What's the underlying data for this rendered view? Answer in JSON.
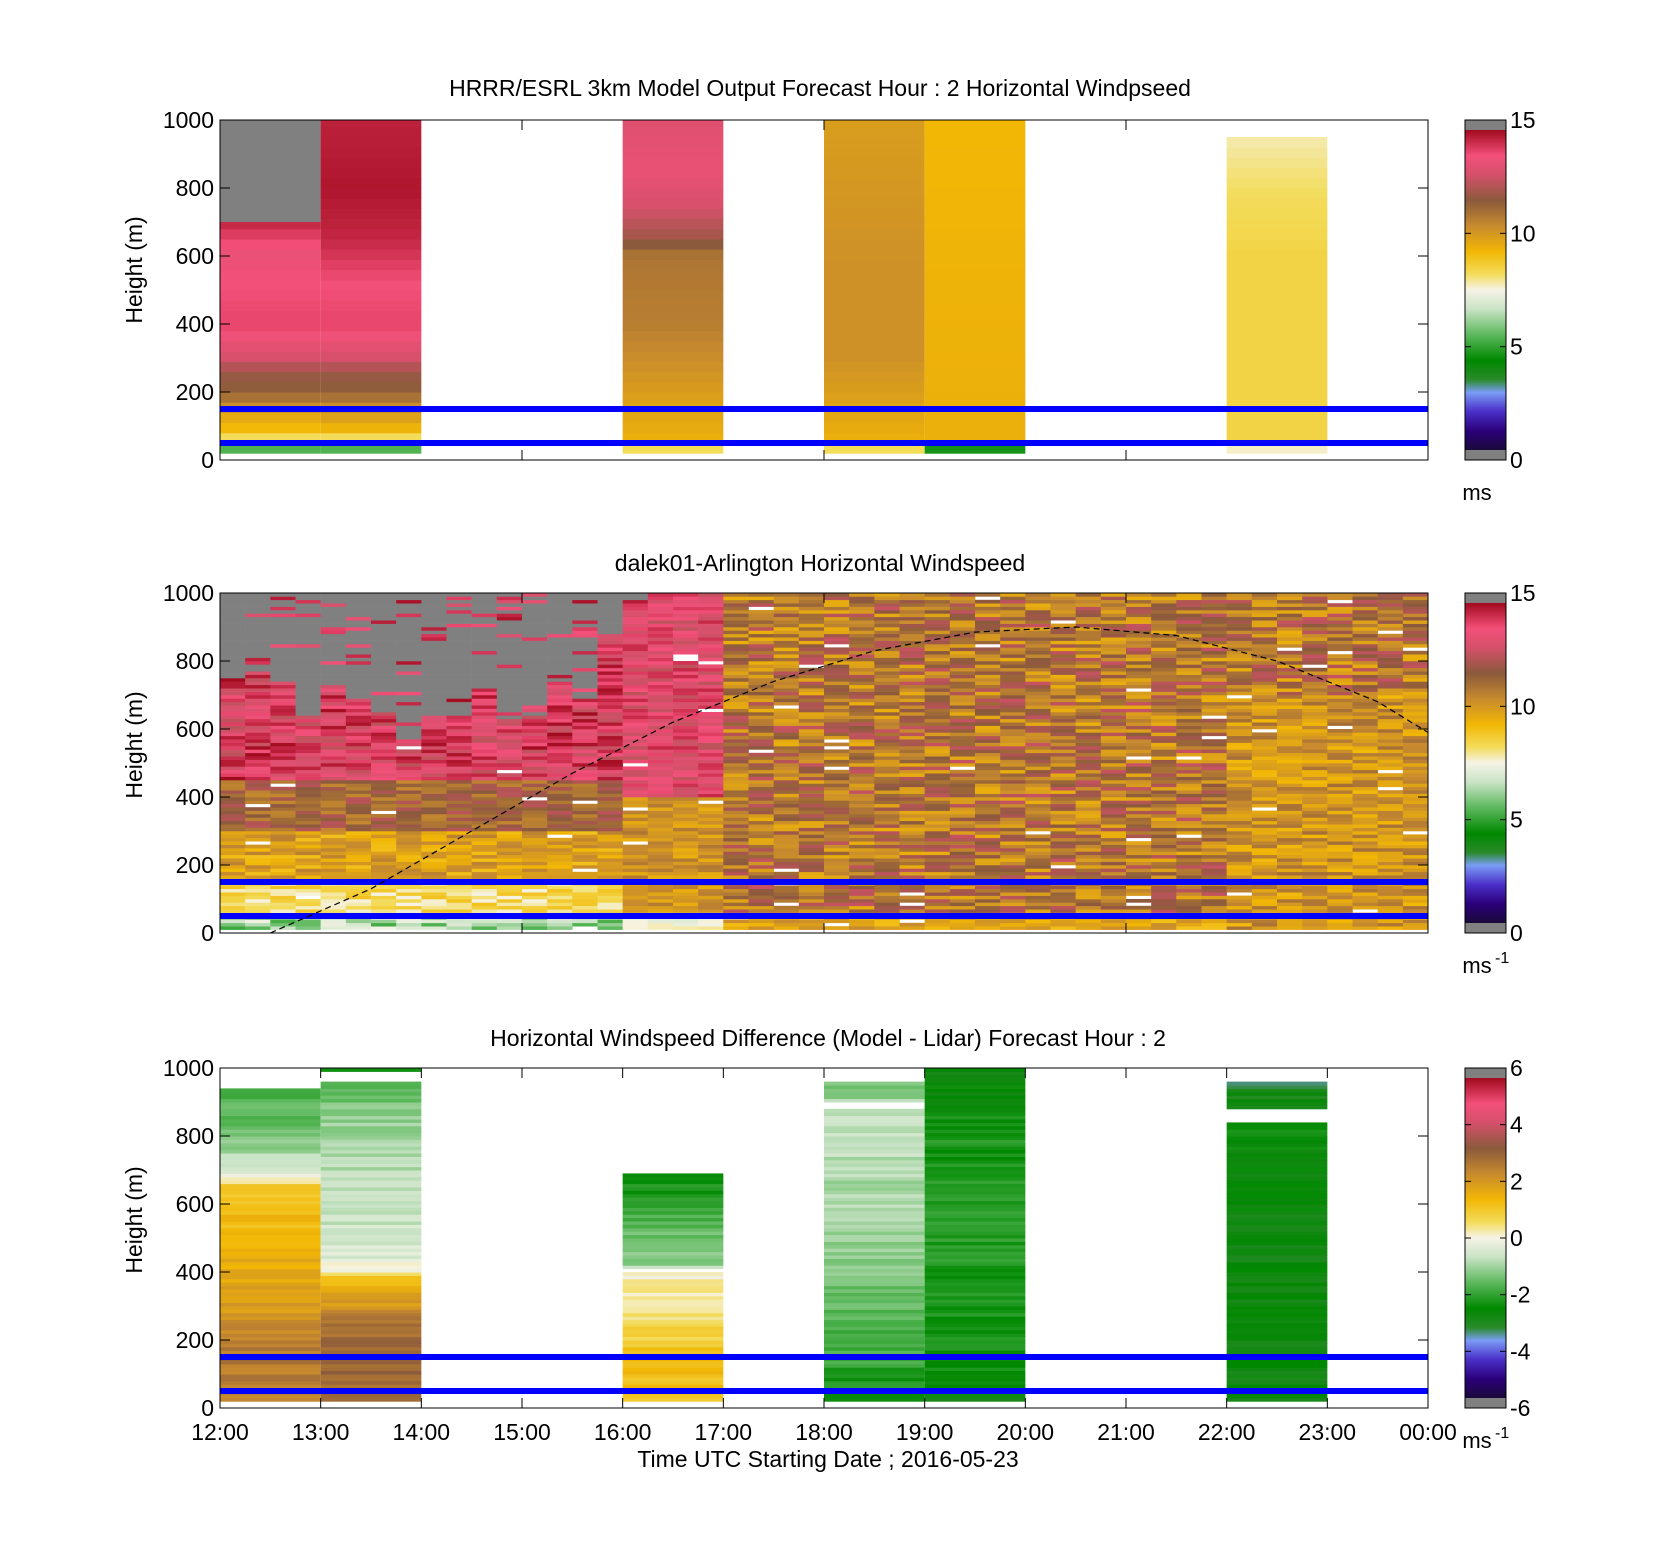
{
  "figure": {
    "xlabel": "Time UTC  Starting Date ; 2016-05-23",
    "x_ticks": [
      "12:00",
      "13:00",
      "14:00",
      "15:00",
      "16:00",
      "17:00",
      "18:00",
      "19:00",
      "20:00",
      "21:00",
      "22:00",
      "23:00",
      "00:00"
    ]
  },
  "colors": {
    "boundary_line": "#0000ff",
    "missing_data": "#808080",
    "mixing_height_curve": "#000000"
  },
  "chart_data": [
    {
      "type": "heatmap",
      "title": "HRRR/ESRL 3km Model Output   Forecast Hour : 2 Horizontal Windpseed",
      "xlabel": "",
      "ylabel": "Height (m)",
      "xlim_hours": [
        12,
        24
      ],
      "ylim": [
        0,
        1000
      ],
      "y_ticks": [
        "0",
        "200",
        "400",
        "600",
        "800",
        "1000"
      ],
      "colorbar": {
        "range": [
          0,
          15
        ],
        "ticks": [
          "0",
          "5",
          "10",
          "15"
        ],
        "units": "ms",
        "units_sup": ""
      },
      "reference_lines_m": [
        150,
        50
      ],
      "columns": [
        {
          "start": 12,
          "end": 13,
          "ytop": 1000,
          "profile": [
            [
              0,
              3.5
            ],
            [
              30,
              5
            ],
            [
              50,
              6
            ],
            [
              70,
              9
            ],
            [
              120,
              9.5
            ],
            [
              160,
              10.5
            ],
            [
              200,
              11.5
            ],
            [
              260,
              12
            ],
            [
              300,
              13
            ],
            [
              400,
              14
            ],
            [
              520,
              13.8
            ],
            [
              600,
              13.5
            ],
            [
              700,
              14.5
            ]
          ],
          "missing_above": 700
        },
        {
          "start": 13,
          "end": 14,
          "ytop": 1000,
          "profile": [
            [
              0,
              4.5
            ],
            [
              30,
              5
            ],
            [
              50,
              6
            ],
            [
              70,
              9
            ],
            [
              120,
              9.8
            ],
            [
              160,
              10.5
            ],
            [
              200,
              11.5
            ],
            [
              260,
              12
            ],
            [
              300,
              13
            ],
            [
              400,
              14
            ],
            [
              520,
              13.8
            ],
            [
              650,
              14.5
            ],
            [
              800,
              14.8
            ],
            [
              1000,
              14.6
            ]
          ]
        },
        {
          "start": 16,
          "end": 17,
          "ytop": 1000,
          "profile": [
            [
              0,
              7.5
            ],
            [
              30,
              8
            ],
            [
              60,
              9.5
            ],
            [
              200,
              10
            ],
            [
              400,
              10.8
            ],
            [
              600,
              11
            ],
            [
              650,
              12
            ],
            [
              750,
              13
            ],
            [
              850,
              13.5
            ],
            [
              1000,
              13.2
            ]
          ]
        },
        {
          "start": 18,
          "end": 19,
          "ytop": 1000,
          "profile": [
            [
              0,
              7.7
            ],
            [
              30,
              8
            ],
            [
              60,
              9.5
            ],
            [
              300,
              10.3
            ],
            [
              600,
              10.3
            ],
            [
              1000,
              10
            ]
          ]
        },
        {
          "start": 19,
          "end": 20,
          "ytop": 1000,
          "profile": [
            [
              0,
              3
            ],
            [
              30,
              3.5
            ],
            [
              60,
              9.5
            ],
            [
              1000,
              9.3
            ]
          ]
        },
        {
          "start": 22,
          "end": 23,
          "ytop": 950,
          "profile": [
            [
              0,
              4
            ],
            [
              30,
              7.5
            ],
            [
              60,
              8.5
            ],
            [
              600,
              8.5
            ],
            [
              800,
              8.2
            ],
            [
              950,
              7.8
            ]
          ]
        }
      ]
    },
    {
      "type": "heatmap",
      "title": "dalek01-Arlington  Horizontal Windspeed",
      "xlabel": "",
      "ylabel": "Height (m)",
      "xlim_hours": [
        12,
        24
      ],
      "ylim": [
        0,
        1000
      ],
      "y_ticks": [
        "0",
        "200",
        "400",
        "600",
        "800",
        "1000"
      ],
      "colorbar": {
        "range": [
          0,
          15
        ],
        "ticks": [
          "0",
          "5",
          "10",
          "15"
        ],
        "units": "ms",
        "units_sup": "-1"
      },
      "reference_lines_m": [
        150,
        50
      ],
      "mixing_height_curve": [
        [
          12.5,
          0
        ],
        [
          13.5,
          130
        ],
        [
          14.5,
          300
        ],
        [
          15.5,
          470
        ],
        [
          16.5,
          620
        ],
        [
          17.5,
          740
        ],
        [
          18.5,
          830
        ],
        [
          19.5,
          885
        ],
        [
          20.5,
          900
        ],
        [
          21.5,
          875
        ],
        [
          22.5,
          800
        ],
        [
          23.5,
          680
        ],
        [
          24,
          590
        ]
      ],
      "lidar": {
        "start_hour": 12,
        "end_hour": 23.9,
        "bin_hours": 0.25,
        "bin_m": 10
      },
      "top_valid_m": [
        750,
        770,
        740,
        640,
        730,
        690,
        650,
        570,
        640,
        640,
        720,
        630,
        640,
        740,
        690,
        880,
        960,
        1000,
        1000,
        1000,
        1000,
        1000,
        1000,
        1000,
        1000,
        1000,
        1000,
        1000,
        1000,
        1000,
        1000,
        1000,
        1000,
        1000,
        1000,
        1000,
        1000,
        1000,
        1000,
        1000,
        1000,
        1000,
        1000,
        1000,
        1000,
        1000,
        1000,
        1000
      ]
    },
    {
      "type": "heatmap",
      "title": "Horizontal Windspeed Difference (Model - Lidar) Forecast Hour : 2",
      "xlabel": "Time UTC  Starting Date ; 2016-05-23",
      "ylabel": "Height (m)",
      "xlim_hours": [
        12,
        24
      ],
      "ylim": [
        0,
        1000
      ],
      "y_ticks": [
        "0",
        "200",
        "400",
        "600",
        "800",
        "1000"
      ],
      "colorbar": {
        "range": [
          -6,
          6
        ],
        "ticks": [
          "-6",
          "-4",
          "-2",
          "0",
          "2",
          "4",
          "6"
        ],
        "units": "ms",
        "units_sup": "-1"
      },
      "reference_lines_m": [
        150,
        50
      ],
      "columns": [
        {
          "start": 12,
          "end": 13,
          "ytop": 940,
          "profile": [
            [
              20,
              2.5
            ],
            [
              150,
              2.8
            ],
            [
              300,
              2
            ],
            [
              500,
              1.5
            ],
            [
              660,
              1
            ],
            [
              670,
              0
            ],
            [
              700,
              -0.5
            ],
            [
              800,
              -1.5
            ],
            [
              940,
              -1.8
            ]
          ]
        },
        {
          "start": 13,
          "end": 14,
          "ytop": 1000,
          "gap": [
            965,
            990
          ],
          "profile": [
            [
              20,
              3
            ],
            [
              150,
              3.2
            ],
            [
              250,
              2.8
            ],
            [
              380,
              1.2
            ],
            [
              400,
              0.2
            ],
            [
              450,
              -0.5
            ],
            [
              600,
              -0.8
            ],
            [
              800,
              -1
            ],
            [
              930,
              -1.6
            ],
            [
              1000,
              -2.6
            ]
          ]
        },
        {
          "start": 16,
          "end": 17,
          "ytop": 690,
          "gap": [
            400,
            410
          ],
          "profile": [
            [
              20,
              1.3
            ],
            [
              150,
              1.3
            ],
            [
              200,
              0.9
            ],
            [
              300,
              0.4
            ],
            [
              390,
              0.1
            ],
            [
              420,
              -1.2
            ],
            [
              550,
              -1.8
            ],
            [
              690,
              -2.6
            ]
          ]
        },
        {
          "start": 18,
          "end": 19,
          "ytop": 960,
          "gap": [
            880,
            900
          ],
          "profile": [
            [
              20,
              -2.6
            ],
            [
              150,
              -2
            ],
            [
              400,
              -1.3
            ],
            [
              700,
              -0.9
            ],
            [
              860,
              -0.6
            ],
            [
              960,
              -1.6
            ]
          ]
        },
        {
          "start": 19,
          "end": 20,
          "ytop": 1000,
          "profile": [
            [
              20,
              -2.8
            ],
            [
              150,
              -2.5
            ],
            [
              500,
              -2.2
            ],
            [
              800,
              -2.4
            ],
            [
              1000,
              -2.9
            ]
          ]
        },
        {
          "start": 22,
          "end": 23,
          "ytop": 960,
          "gap": [
            840,
            880
          ],
          "profile": [
            [
              20,
              -3
            ],
            [
              200,
              -2.8
            ],
            [
              500,
              -2.9
            ],
            [
              840,
              -2.6
            ],
            [
              880,
              -2.8
            ],
            [
              945,
              -3.2
            ],
            [
              960,
              -3.8
            ]
          ]
        }
      ]
    }
  ]
}
